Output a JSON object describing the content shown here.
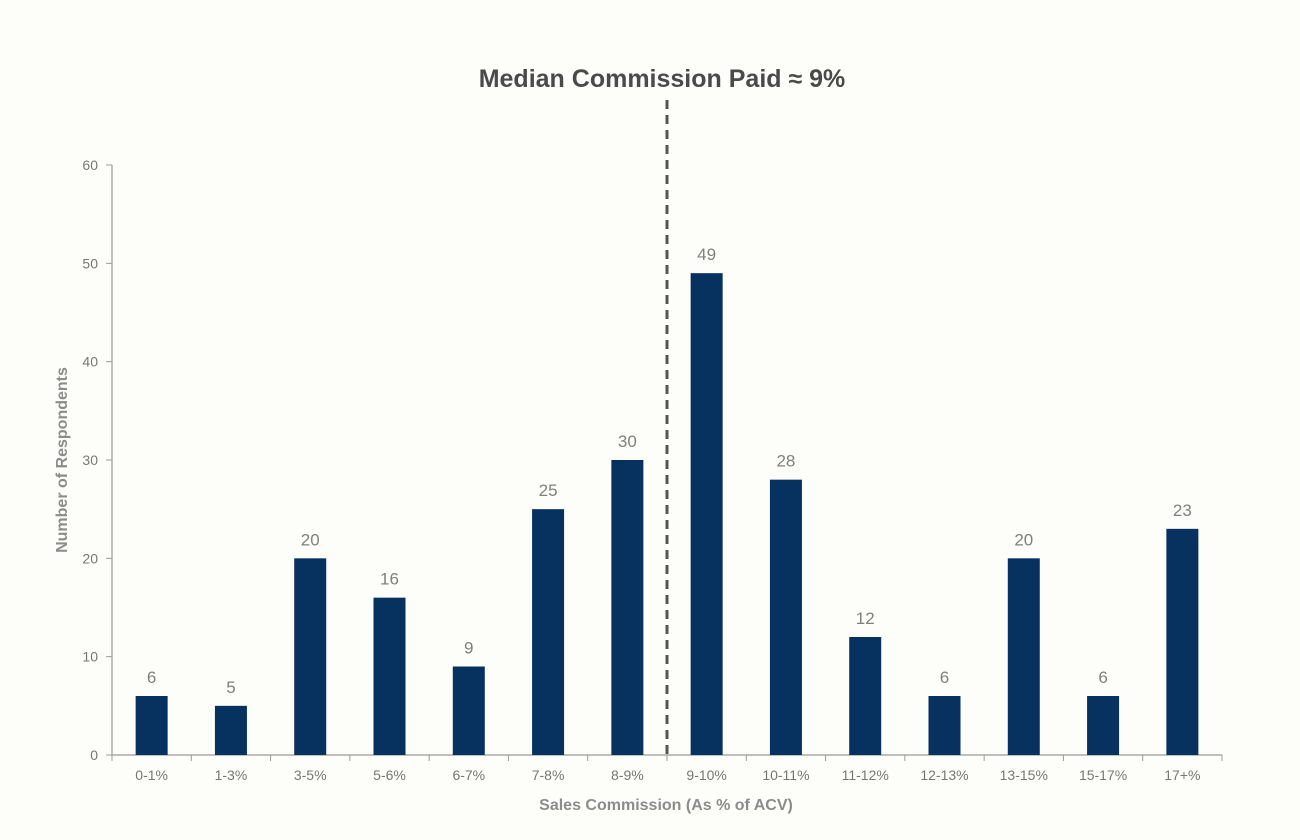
{
  "chart_data": {
    "type": "bar",
    "title": "Median Commission Paid ≈ 9%",
    "xlabel": "Sales Commission (As % of ACV)",
    "ylabel": "Number of Respondents",
    "categories": [
      "0-1%",
      "1-3%",
      "3-5%",
      "5-6%",
      "6-7%",
      "7-8%",
      "8-9%",
      "9-10%",
      "10-11%",
      "11-12%",
      "12-13%",
      "13-15%",
      "15-17%",
      "17+%"
    ],
    "values": [
      6,
      5,
      20,
      16,
      9,
      25,
      30,
      49,
      28,
      12,
      6,
      20,
      6,
      23
    ],
    "ylim": [
      0,
      60
    ],
    "yticks": [
      0,
      10,
      20,
      30,
      40,
      50,
      60
    ],
    "grid": false,
    "legend": "none",
    "data_labels": true,
    "bar_color": "#07315f",
    "median_marker": {
      "style": "dashed",
      "between_categories": [
        "8-9%",
        "9-10%"
      ]
    }
  }
}
